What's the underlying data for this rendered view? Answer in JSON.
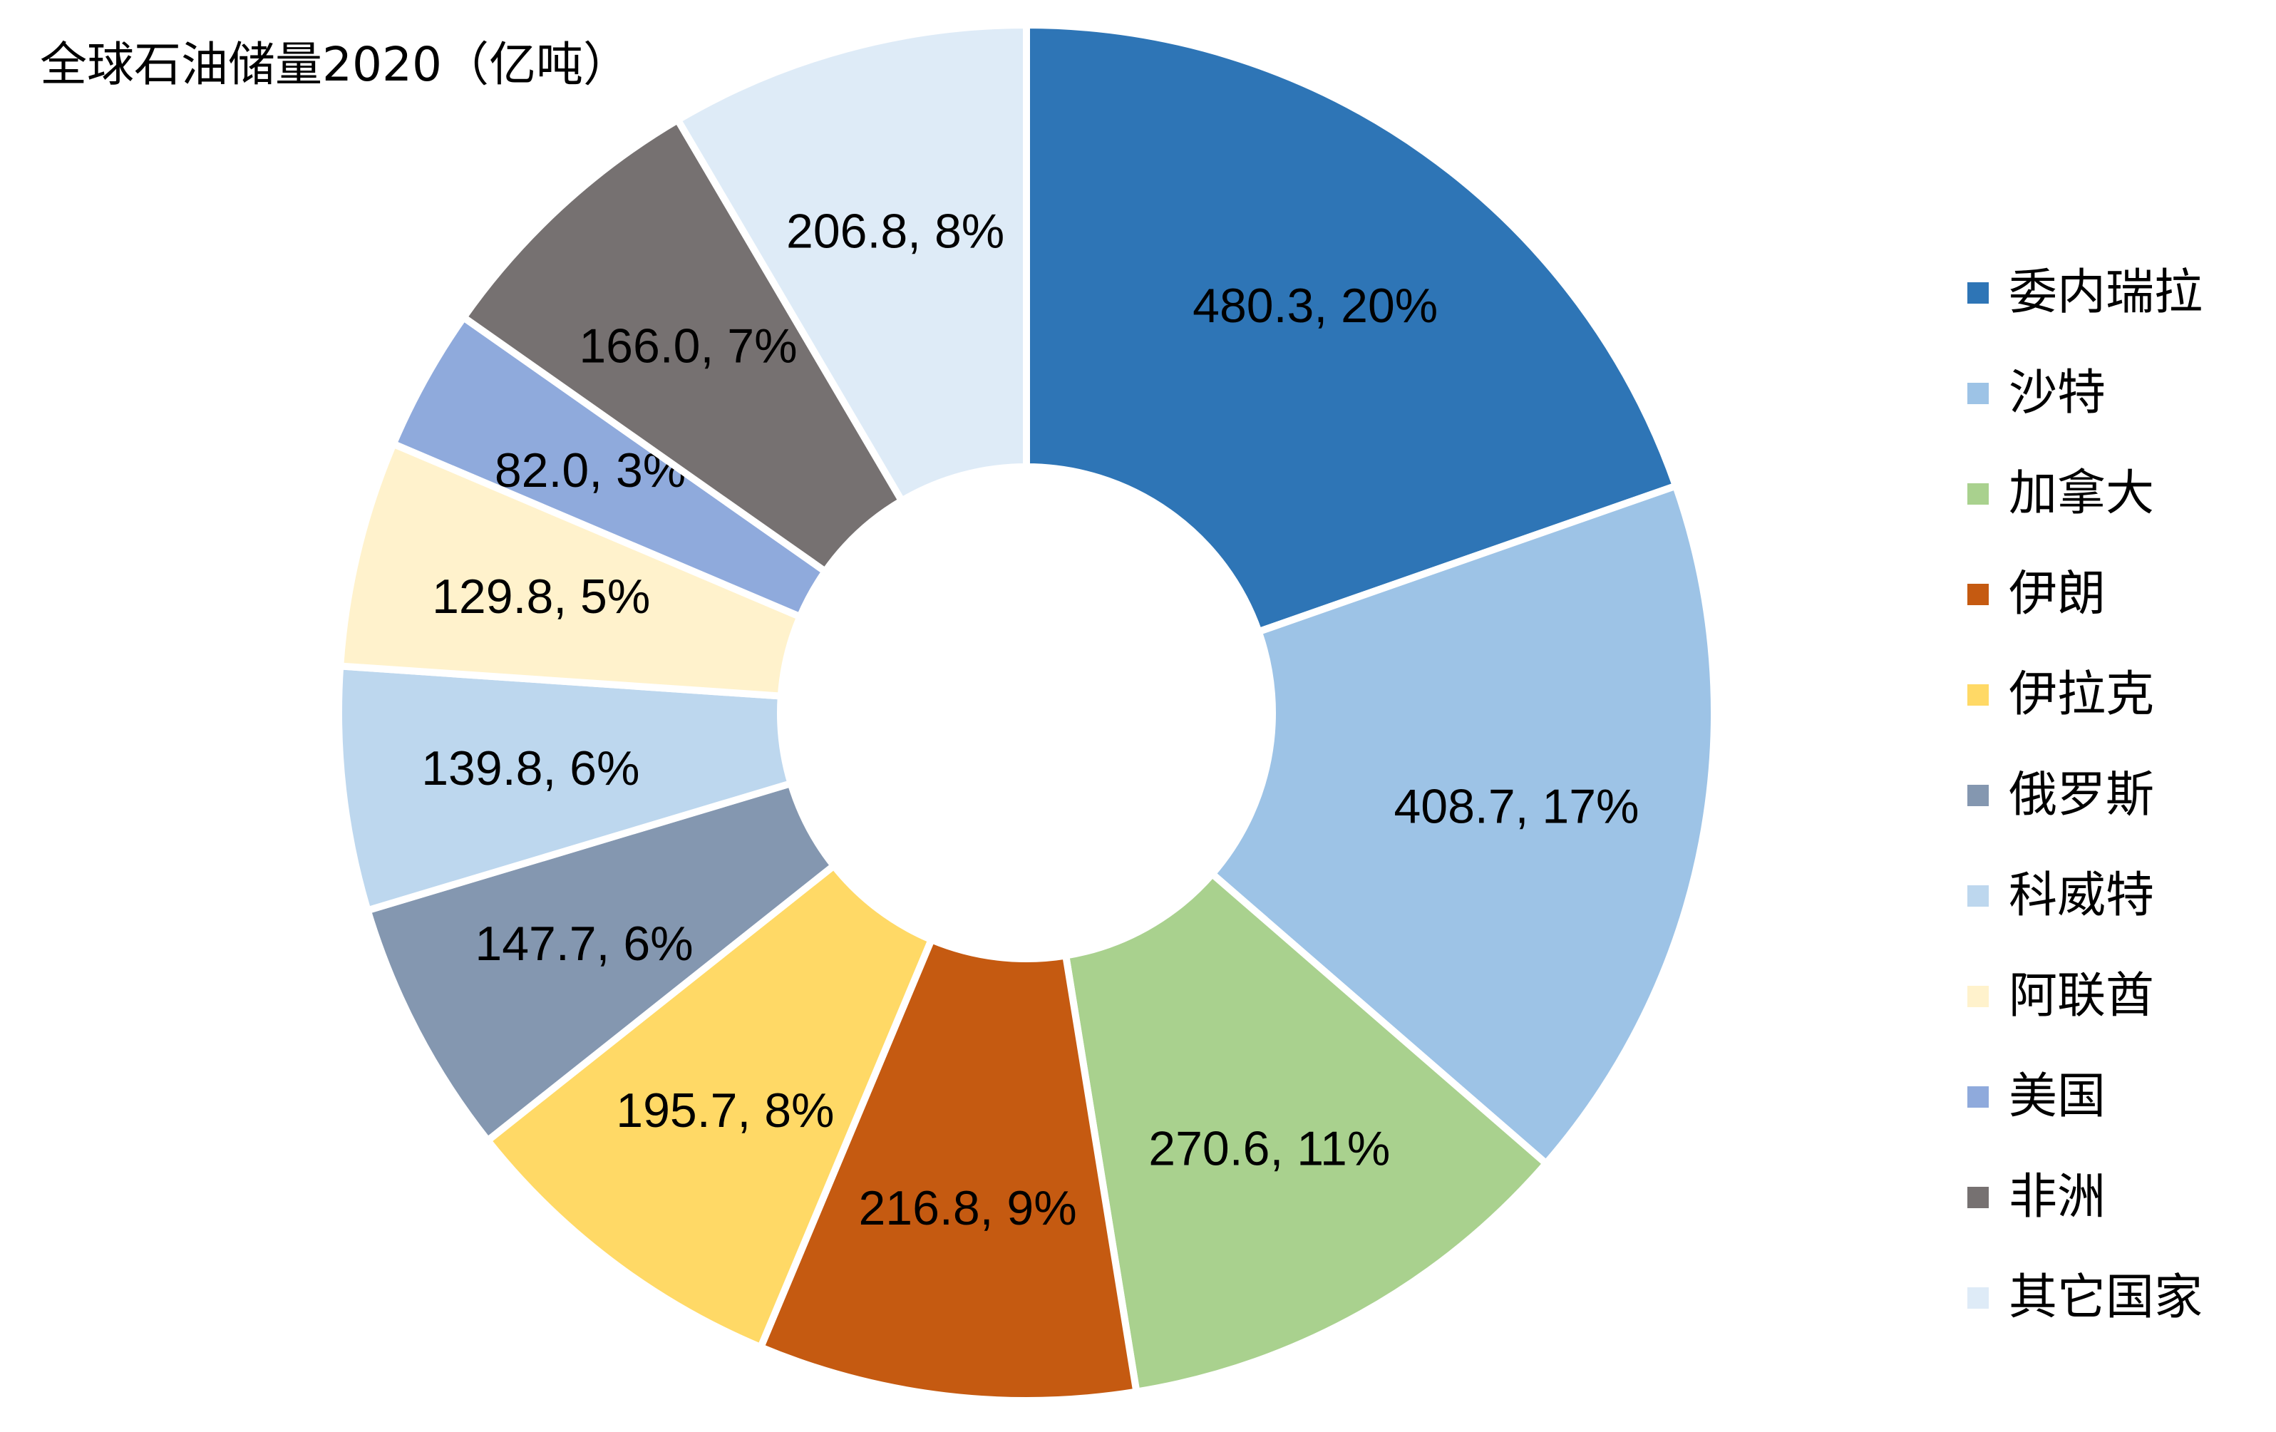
{
  "chart_data": {
    "type": "pie",
    "title": "全球石油储量2020（亿吨）",
    "legend_position": "right",
    "categories": [
      "委内瑞拉",
      "沙特",
      "加拿大",
      "伊朗",
      "伊拉克",
      "俄罗斯",
      "科威特",
      "阿联酋",
      "美国",
      "非洲",
      "其它国家"
    ],
    "values": [
      480.3,
      408.7,
      270.6,
      216.8,
      195.7,
      147.7,
      139.8,
      129.8,
      82.0,
      166.0,
      206.8
    ],
    "data_labels": [
      "480.3, 20%",
      "408.7, 17%",
      "270.6, 11%",
      "216.8, 9%",
      "195.7, 8%",
      "147.7, 6%",
      "139.8, 6%",
      "129.8, 5%",
      "82.0, 3%",
      "166.0, 7%",
      "206.8, 8%"
    ],
    "colors": [
      "#2E75B6",
      "#9DC3E6",
      "#A9D18E",
      "#C55A11",
      "#FFD966",
      "#8497B0",
      "#BDD7EE",
      "#FFF2CC",
      "#8FAADC",
      "#767171",
      "#DEEBF7"
    ]
  }
}
